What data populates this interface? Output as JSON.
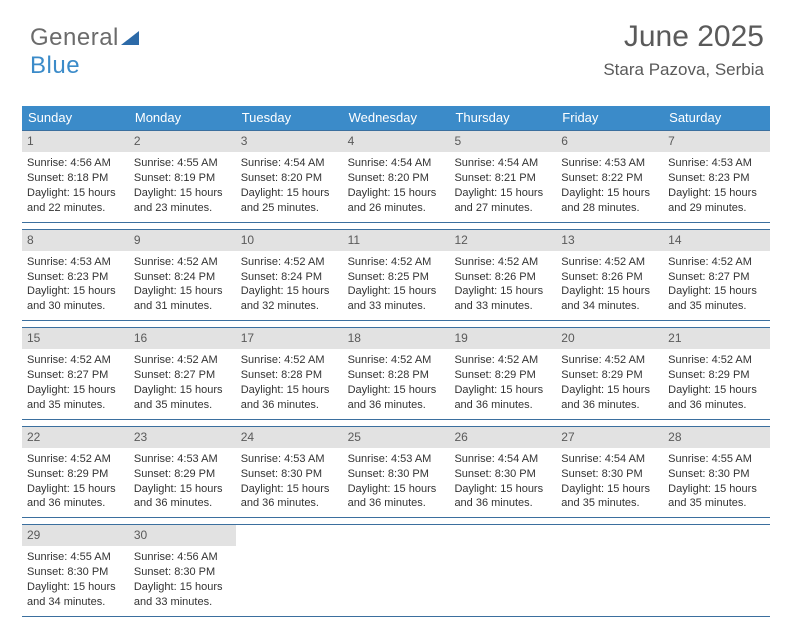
{
  "logo": {
    "text1": "General",
    "text2": "Blue",
    "icon_color": "#2c6aa8"
  },
  "title": "June 2025",
  "location": "Stara Pazova, Serbia",
  "colors": {
    "header_bg": "#3b8bc9",
    "header_fg": "#ffffff",
    "daynum_bg": "#e2e2e2",
    "rule": "#3b6f9e",
    "text": "#333333",
    "title_text": "#5a5a5a"
  },
  "weekdays": [
    "Sunday",
    "Monday",
    "Tuesday",
    "Wednesday",
    "Thursday",
    "Friday",
    "Saturday"
  ],
  "labels": {
    "sunrise": "Sunrise:",
    "sunset": "Sunset:",
    "daylight": "Daylight:"
  },
  "weeks": [
    [
      {
        "n": 1,
        "sr": "4:56 AM",
        "ss": "8:18 PM",
        "dl": "15 hours and 22 minutes."
      },
      {
        "n": 2,
        "sr": "4:55 AM",
        "ss": "8:19 PM",
        "dl": "15 hours and 23 minutes."
      },
      {
        "n": 3,
        "sr": "4:54 AM",
        "ss": "8:20 PM",
        "dl": "15 hours and 25 minutes."
      },
      {
        "n": 4,
        "sr": "4:54 AM",
        "ss": "8:20 PM",
        "dl": "15 hours and 26 minutes."
      },
      {
        "n": 5,
        "sr": "4:54 AM",
        "ss": "8:21 PM",
        "dl": "15 hours and 27 minutes."
      },
      {
        "n": 6,
        "sr": "4:53 AM",
        "ss": "8:22 PM",
        "dl": "15 hours and 28 minutes."
      },
      {
        "n": 7,
        "sr": "4:53 AM",
        "ss": "8:23 PM",
        "dl": "15 hours and 29 minutes."
      }
    ],
    [
      {
        "n": 8,
        "sr": "4:53 AM",
        "ss": "8:23 PM",
        "dl": "15 hours and 30 minutes."
      },
      {
        "n": 9,
        "sr": "4:52 AM",
        "ss": "8:24 PM",
        "dl": "15 hours and 31 minutes."
      },
      {
        "n": 10,
        "sr": "4:52 AM",
        "ss": "8:24 PM",
        "dl": "15 hours and 32 minutes."
      },
      {
        "n": 11,
        "sr": "4:52 AM",
        "ss": "8:25 PM",
        "dl": "15 hours and 33 minutes."
      },
      {
        "n": 12,
        "sr": "4:52 AM",
        "ss": "8:26 PM",
        "dl": "15 hours and 33 minutes."
      },
      {
        "n": 13,
        "sr": "4:52 AM",
        "ss": "8:26 PM",
        "dl": "15 hours and 34 minutes."
      },
      {
        "n": 14,
        "sr": "4:52 AM",
        "ss": "8:27 PM",
        "dl": "15 hours and 35 minutes."
      }
    ],
    [
      {
        "n": 15,
        "sr": "4:52 AM",
        "ss": "8:27 PM",
        "dl": "15 hours and 35 minutes."
      },
      {
        "n": 16,
        "sr": "4:52 AM",
        "ss": "8:27 PM",
        "dl": "15 hours and 35 minutes."
      },
      {
        "n": 17,
        "sr": "4:52 AM",
        "ss": "8:28 PM",
        "dl": "15 hours and 36 minutes."
      },
      {
        "n": 18,
        "sr": "4:52 AM",
        "ss": "8:28 PM",
        "dl": "15 hours and 36 minutes."
      },
      {
        "n": 19,
        "sr": "4:52 AM",
        "ss": "8:29 PM",
        "dl": "15 hours and 36 minutes."
      },
      {
        "n": 20,
        "sr": "4:52 AM",
        "ss": "8:29 PM",
        "dl": "15 hours and 36 minutes."
      },
      {
        "n": 21,
        "sr": "4:52 AM",
        "ss": "8:29 PM",
        "dl": "15 hours and 36 minutes."
      }
    ],
    [
      {
        "n": 22,
        "sr": "4:52 AM",
        "ss": "8:29 PM",
        "dl": "15 hours and 36 minutes."
      },
      {
        "n": 23,
        "sr": "4:53 AM",
        "ss": "8:29 PM",
        "dl": "15 hours and 36 minutes."
      },
      {
        "n": 24,
        "sr": "4:53 AM",
        "ss": "8:30 PM",
        "dl": "15 hours and 36 minutes."
      },
      {
        "n": 25,
        "sr": "4:53 AM",
        "ss": "8:30 PM",
        "dl": "15 hours and 36 minutes."
      },
      {
        "n": 26,
        "sr": "4:54 AM",
        "ss": "8:30 PM",
        "dl": "15 hours and 36 minutes."
      },
      {
        "n": 27,
        "sr": "4:54 AM",
        "ss": "8:30 PM",
        "dl": "15 hours and 35 minutes."
      },
      {
        "n": 28,
        "sr": "4:55 AM",
        "ss": "8:30 PM",
        "dl": "15 hours and 35 minutes."
      }
    ],
    [
      {
        "n": 29,
        "sr": "4:55 AM",
        "ss": "8:30 PM",
        "dl": "15 hours and 34 minutes."
      },
      {
        "n": 30,
        "sr": "4:56 AM",
        "ss": "8:30 PM",
        "dl": "15 hours and 33 minutes."
      },
      null,
      null,
      null,
      null,
      null
    ]
  ]
}
